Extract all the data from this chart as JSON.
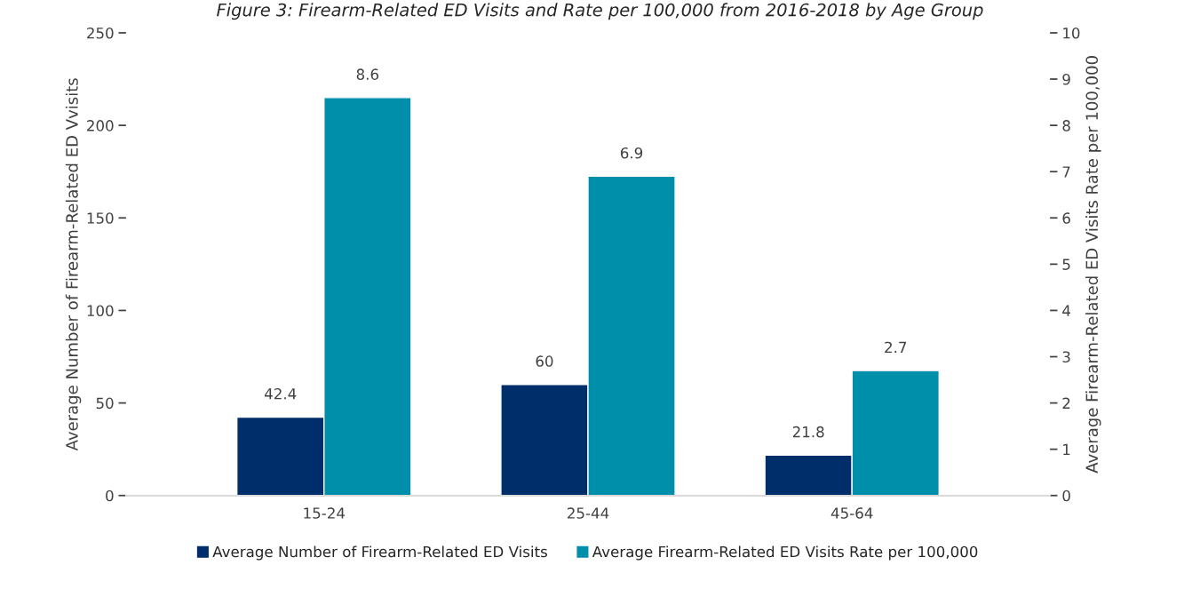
{
  "chart_data": {
    "type": "bar",
    "title": "Figure 3: Firearm-Related ED Visits and Rate per 100,000 from 2016-2018 by Age Group",
    "categories": [
      "15-24",
      "25-44",
      "45-64"
    ],
    "series": [
      {
        "name": "Average Number of Firearm-Related ED Visits",
        "color": "#002e6b",
        "values": [
          42.4,
          60,
          21.8
        ]
      },
      {
        "name": "Average Firearm-Related ED Visits Rate per 100,000",
        "color": "#008fab",
        "values": [
          8.6,
          6.9,
          2.7
        ],
        "axis": "y2"
      }
    ],
    "ylabel": "Average Number of Firearm-Related ED Vvisits",
    "y2label": "Average Firearm-Related ED Visits Rate per 100,000",
    "ylim": [
      0,
      250
    ],
    "yticks": [
      0,
      50,
      100,
      150,
      200,
      250
    ],
    "y2lim": [
      0,
      10
    ],
    "y2ticks": [
      0,
      1,
      2,
      3,
      4,
      5,
      6,
      7,
      8,
      9,
      10
    ],
    "data_labels": true,
    "legend": "bottom",
    "grid": false
  }
}
